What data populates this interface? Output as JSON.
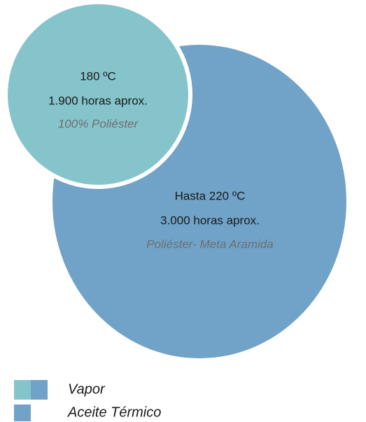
{
  "circles": [
    {
      "temperature": "180 ºC",
      "duration": "1.900 horas aprox.",
      "material": "100% Poliéster"
    },
    {
      "temperature": "Hasta 220 ºC",
      "duration": "3.000 horas aprox.",
      "material": "Poliéster- Meta Aramida"
    }
  ],
  "legend": [
    {
      "label": "Vapor"
    },
    {
      "label": "Aceite Térmico"
    }
  ]
}
